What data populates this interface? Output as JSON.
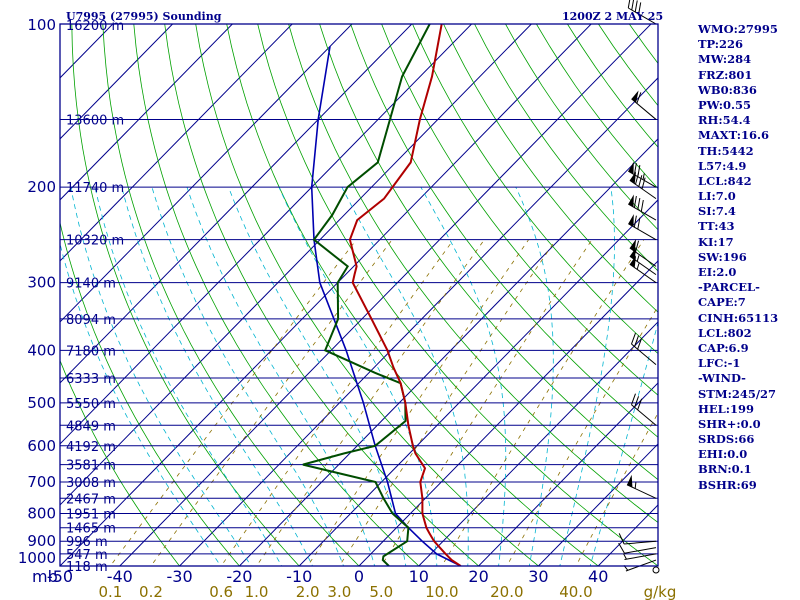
{
  "header": {
    "station": "U7995 (27995) Sounding",
    "time": "1200Z  2 MAY 25"
  },
  "colors": {
    "frame": "#00008b",
    "isotherm": "#00008b",
    "dry_adiabat": "#00a000",
    "moist_adiabat": "#00b4d0",
    "mixing_ratio": "#8b7000",
    "temperature": "#b00000",
    "dewpoint": "#004d00",
    "parcel": "#0000b0",
    "wind_barb": "#000000",
    "text": "#00008b"
  },
  "chart_data": {
    "type": "skew-t",
    "title": "U7995 (27995) Sounding",
    "time": "1200Z  2 MAY 25",
    "y_axis": "log-pressure",
    "ylim": [
      1000,
      100
    ],
    "xlim": [
      -50,
      50
    ],
    "y_unit_label": "mb",
    "pressure_ticks": [
      {
        "p": 1000,
        "label": "1000"
      },
      {
        "p": 900,
        "label": "900"
      },
      {
        "p": 800,
        "label": "800"
      },
      {
        "p": 700,
        "label": "700"
      },
      {
        "p": 600,
        "label": "600"
      },
      {
        "p": 500,
        "label": "500"
      },
      {
        "p": 400,
        "label": "400"
      },
      {
        "p": 300,
        "label": "300"
      },
      {
        "p": 200,
        "label": "200"
      },
      {
        "p": 100,
        "label": "100"
      }
    ],
    "temp_ticks": [
      {
        "t": -50,
        "label": "-50"
      },
      {
        "t": -40,
        "label": "-40"
      },
      {
        "t": -30,
        "label": "-30"
      },
      {
        "t": -20,
        "label": "-20"
      },
      {
        "t": -10,
        "label": "-10"
      },
      {
        "t": 0,
        "label": "0"
      },
      {
        "t": 10,
        "label": "10"
      },
      {
        "t": 20,
        "label": "20"
      },
      {
        "t": 30,
        "label": "30"
      },
      {
        "t": 40,
        "label": "40"
      }
    ],
    "mixing_ratio_unit": "g/kg",
    "mixing_ratio_ticks": [
      {
        "w": 0.1,
        "label": "0.1"
      },
      {
        "w": 0.2,
        "label": "0.2"
      },
      {
        "w": 0.6,
        "label": "0.6"
      },
      {
        "w": 1.0,
        "label": "1.0"
      },
      {
        "w": 2.0,
        "label": "2.0"
      },
      {
        "w": 3.0,
        "label": "3.0"
      },
      {
        "w": 5.0,
        "label": "5.0"
      },
      {
        "w": 10.0,
        "label": "10.0"
      },
      {
        "w": 20.0,
        "label": "20.0"
      },
      {
        "w": 40.0,
        "label": "40.0"
      }
    ],
    "height_levels": [
      {
        "p": 100,
        "label": "16200 m"
      },
      {
        "p": 150,
        "label": "13600 m"
      },
      {
        "p": 200,
        "label": "11740 m"
      },
      {
        "p": 250,
        "label": "10320 m"
      },
      {
        "p": 300,
        "label": "9140 m"
      },
      {
        "p": 350,
        "label": "8094 m"
      },
      {
        "p": 400,
        "label": "7180 m"
      },
      {
        "p": 450,
        "label": "6333 m"
      },
      {
        "p": 500,
        "label": "5550 m"
      },
      {
        "p": 550,
        "label": "4849 m"
      },
      {
        "p": 600,
        "label": "4192 m"
      },
      {
        "p": 650,
        "label": "3581 m"
      },
      {
        "p": 700,
        "label": "3008 m"
      },
      {
        "p": 750,
        "label": "2467 m"
      },
      {
        "p": 800,
        "label": "1951 m"
      },
      {
        "p": 850,
        "label": "1465 m"
      },
      {
        "p": 900,
        "label": "996 m"
      },
      {
        "p": 950,
        "label": "547 m"
      },
      {
        "p": 1000,
        "label": "118 m"
      }
    ],
    "temperature": [
      {
        "p": 1000,
        "t": 17.0
      },
      {
        "p": 975,
        "t": 14.5
      },
      {
        "p": 950,
        "t": 12.5
      },
      {
        "p": 925,
        "t": 10.5
      },
      {
        "p": 900,
        "t": 8.5
      },
      {
        "p": 870,
        "t": 6.4
      },
      {
        "p": 850,
        "t": 5.0
      },
      {
        "p": 800,
        "t": 2.0
      },
      {
        "p": 750,
        "t": -0.5
      },
      {
        "p": 700,
        "t": -3.5
      },
      {
        "p": 660,
        "t": -5.0
      },
      {
        "p": 620,
        "t": -9.0
      },
      {
        "p": 600,
        "t": -10.7
      },
      {
        "p": 550,
        "t": -14.8
      },
      {
        "p": 500,
        "t": -19.0
      },
      {
        "p": 460,
        "t": -23.0
      },
      {
        "p": 430,
        "t": -26.8
      },
      {
        "p": 400,
        "t": -30.6
      },
      {
        "p": 350,
        "t": -38.4
      },
      {
        "p": 300,
        "t": -47.5
      },
      {
        "p": 290,
        "t": -48.5
      },
      {
        "p": 280,
        "t": -49.5
      },
      {
        "p": 250,
        "t": -55.0
      },
      {
        "p": 230,
        "t": -57.0
      },
      {
        "p": 210,
        "t": -56.0
      },
      {
        "p": 180,
        "t": -57.5
      },
      {
        "p": 150,
        "t": -63.0
      },
      {
        "p": 125,
        "t": -68.0
      },
      {
        "p": 100,
        "t": -75.0
      }
    ],
    "dewpoint": [
      {
        "p": 1000,
        "t": 5.0
      },
      {
        "p": 975,
        "t": 3.0
      },
      {
        "p": 960,
        "t": 2.5
      },
      {
        "p": 900,
        "t": 4.0
      },
      {
        "p": 850,
        "t": 2.0
      },
      {
        "p": 800,
        "t": -3.0
      },
      {
        "p": 750,
        "t": -7.0
      },
      {
        "p": 700,
        "t": -11.0
      },
      {
        "p": 650,
        "t": -26.0
      },
      {
        "p": 620,
        "t": -21.0
      },
      {
        "p": 600,
        "t": -17.0
      },
      {
        "p": 540,
        "t": -16.0
      },
      {
        "p": 500,
        "t": -19.0
      },
      {
        "p": 460,
        "t": -23.0
      },
      {
        "p": 440,
        "t": -29.0
      },
      {
        "p": 400,
        "t": -41.0
      },
      {
        "p": 350,
        "t": -44.0
      },
      {
        "p": 300,
        "t": -50.0
      },
      {
        "p": 280,
        "t": -51.0
      },
      {
        "p": 250,
        "t": -61.0
      },
      {
        "p": 225,
        "t": -62.0
      },
      {
        "p": 200,
        "t": -64.0
      },
      {
        "p": 180,
        "t": -63.0
      },
      {
        "p": 150,
        "t": -68.0
      },
      {
        "p": 125,
        "t": -73.0
      },
      {
        "p": 100,
        "t": -77.0
      }
    ],
    "parcel": [
      {
        "p": 1000,
        "t": 17.0
      },
      {
        "p": 950,
        "t": 11.0
      },
      {
        "p": 900,
        "t": 6.5
      },
      {
        "p": 850,
        "t": 2.0
      },
      {
        "p": 800,
        "t": -2.5
      },
      {
        "p": 700,
        "t": -9.0
      },
      {
        "p": 600,
        "t": -17.0
      },
      {
        "p": 500,
        "t": -26.0
      },
      {
        "p": 400,
        "t": -37.5
      },
      {
        "p": 300,
        "t": -53.0
      },
      {
        "p": 250,
        "t": -61.0
      },
      {
        "p": 200,
        "t": -70.0
      },
      {
        "p": 150,
        "t": -80.0
      },
      {
        "p": 110,
        "t": -90.0
      }
    ],
    "winds": [
      {
        "p": 1000,
        "dir": 0,
        "spd": 0
      },
      {
        "p": 975,
        "dir": 250,
        "spd": 5
      },
      {
        "p": 950,
        "dir": 260,
        "spd": 5
      },
      {
        "p": 925,
        "dir": 260,
        "spd": 10
      },
      {
        "p": 900,
        "dir": 265,
        "spd": 10
      },
      {
        "p": 750,
        "dir": 295,
        "spd": 55
      },
      {
        "p": 550,
        "dir": 310,
        "spd": 30
      },
      {
        "p": 425,
        "dir": 310,
        "spd": 30
      },
      {
        "p": 300,
        "dir": 305,
        "spd": 55
      },
      {
        "p": 290,
        "dir": 305,
        "spd": 55
      },
      {
        "p": 280,
        "dir": 305,
        "spd": 60
      },
      {
        "p": 250,
        "dir": 300,
        "spd": 70
      },
      {
        "p": 230,
        "dir": 300,
        "spd": 80
      },
      {
        "p": 210,
        "dir": 305,
        "spd": 80
      },
      {
        "p": 200,
        "dir": 300,
        "spd": 75
      },
      {
        "p": 150,
        "dir": 310,
        "spd": 60
      },
      {
        "p": 100,
        "dir": 300,
        "spd": 40
      }
    ]
  },
  "indices": [
    "WMO:27995",
    "TP:226",
    "MW:284",
    "FRZ:801",
    "WB0:836",
    "PW:0.55",
    "RH:54.4",
    "MAXT:16.6",
    "TH:5442",
    "L57:4.9",
    "LCL:842",
    "LI:7.0",
    "SI:7.4",
    "TT:43",
    "KI:17",
    "SW:196",
    "EI:2.0",
    "-PARCEL-",
    "CAPE:7",
    "CINH:65113",
    "LCL:802",
    "CAP:6.9",
    "LFC:-1",
    "-WIND-",
    "STM:245/27",
    "HEL:199",
    "SHR+:0.0",
    "SRDS:66",
    "EHI:0.0",
    "BRN:0.1",
    "BSHR:69"
  ]
}
